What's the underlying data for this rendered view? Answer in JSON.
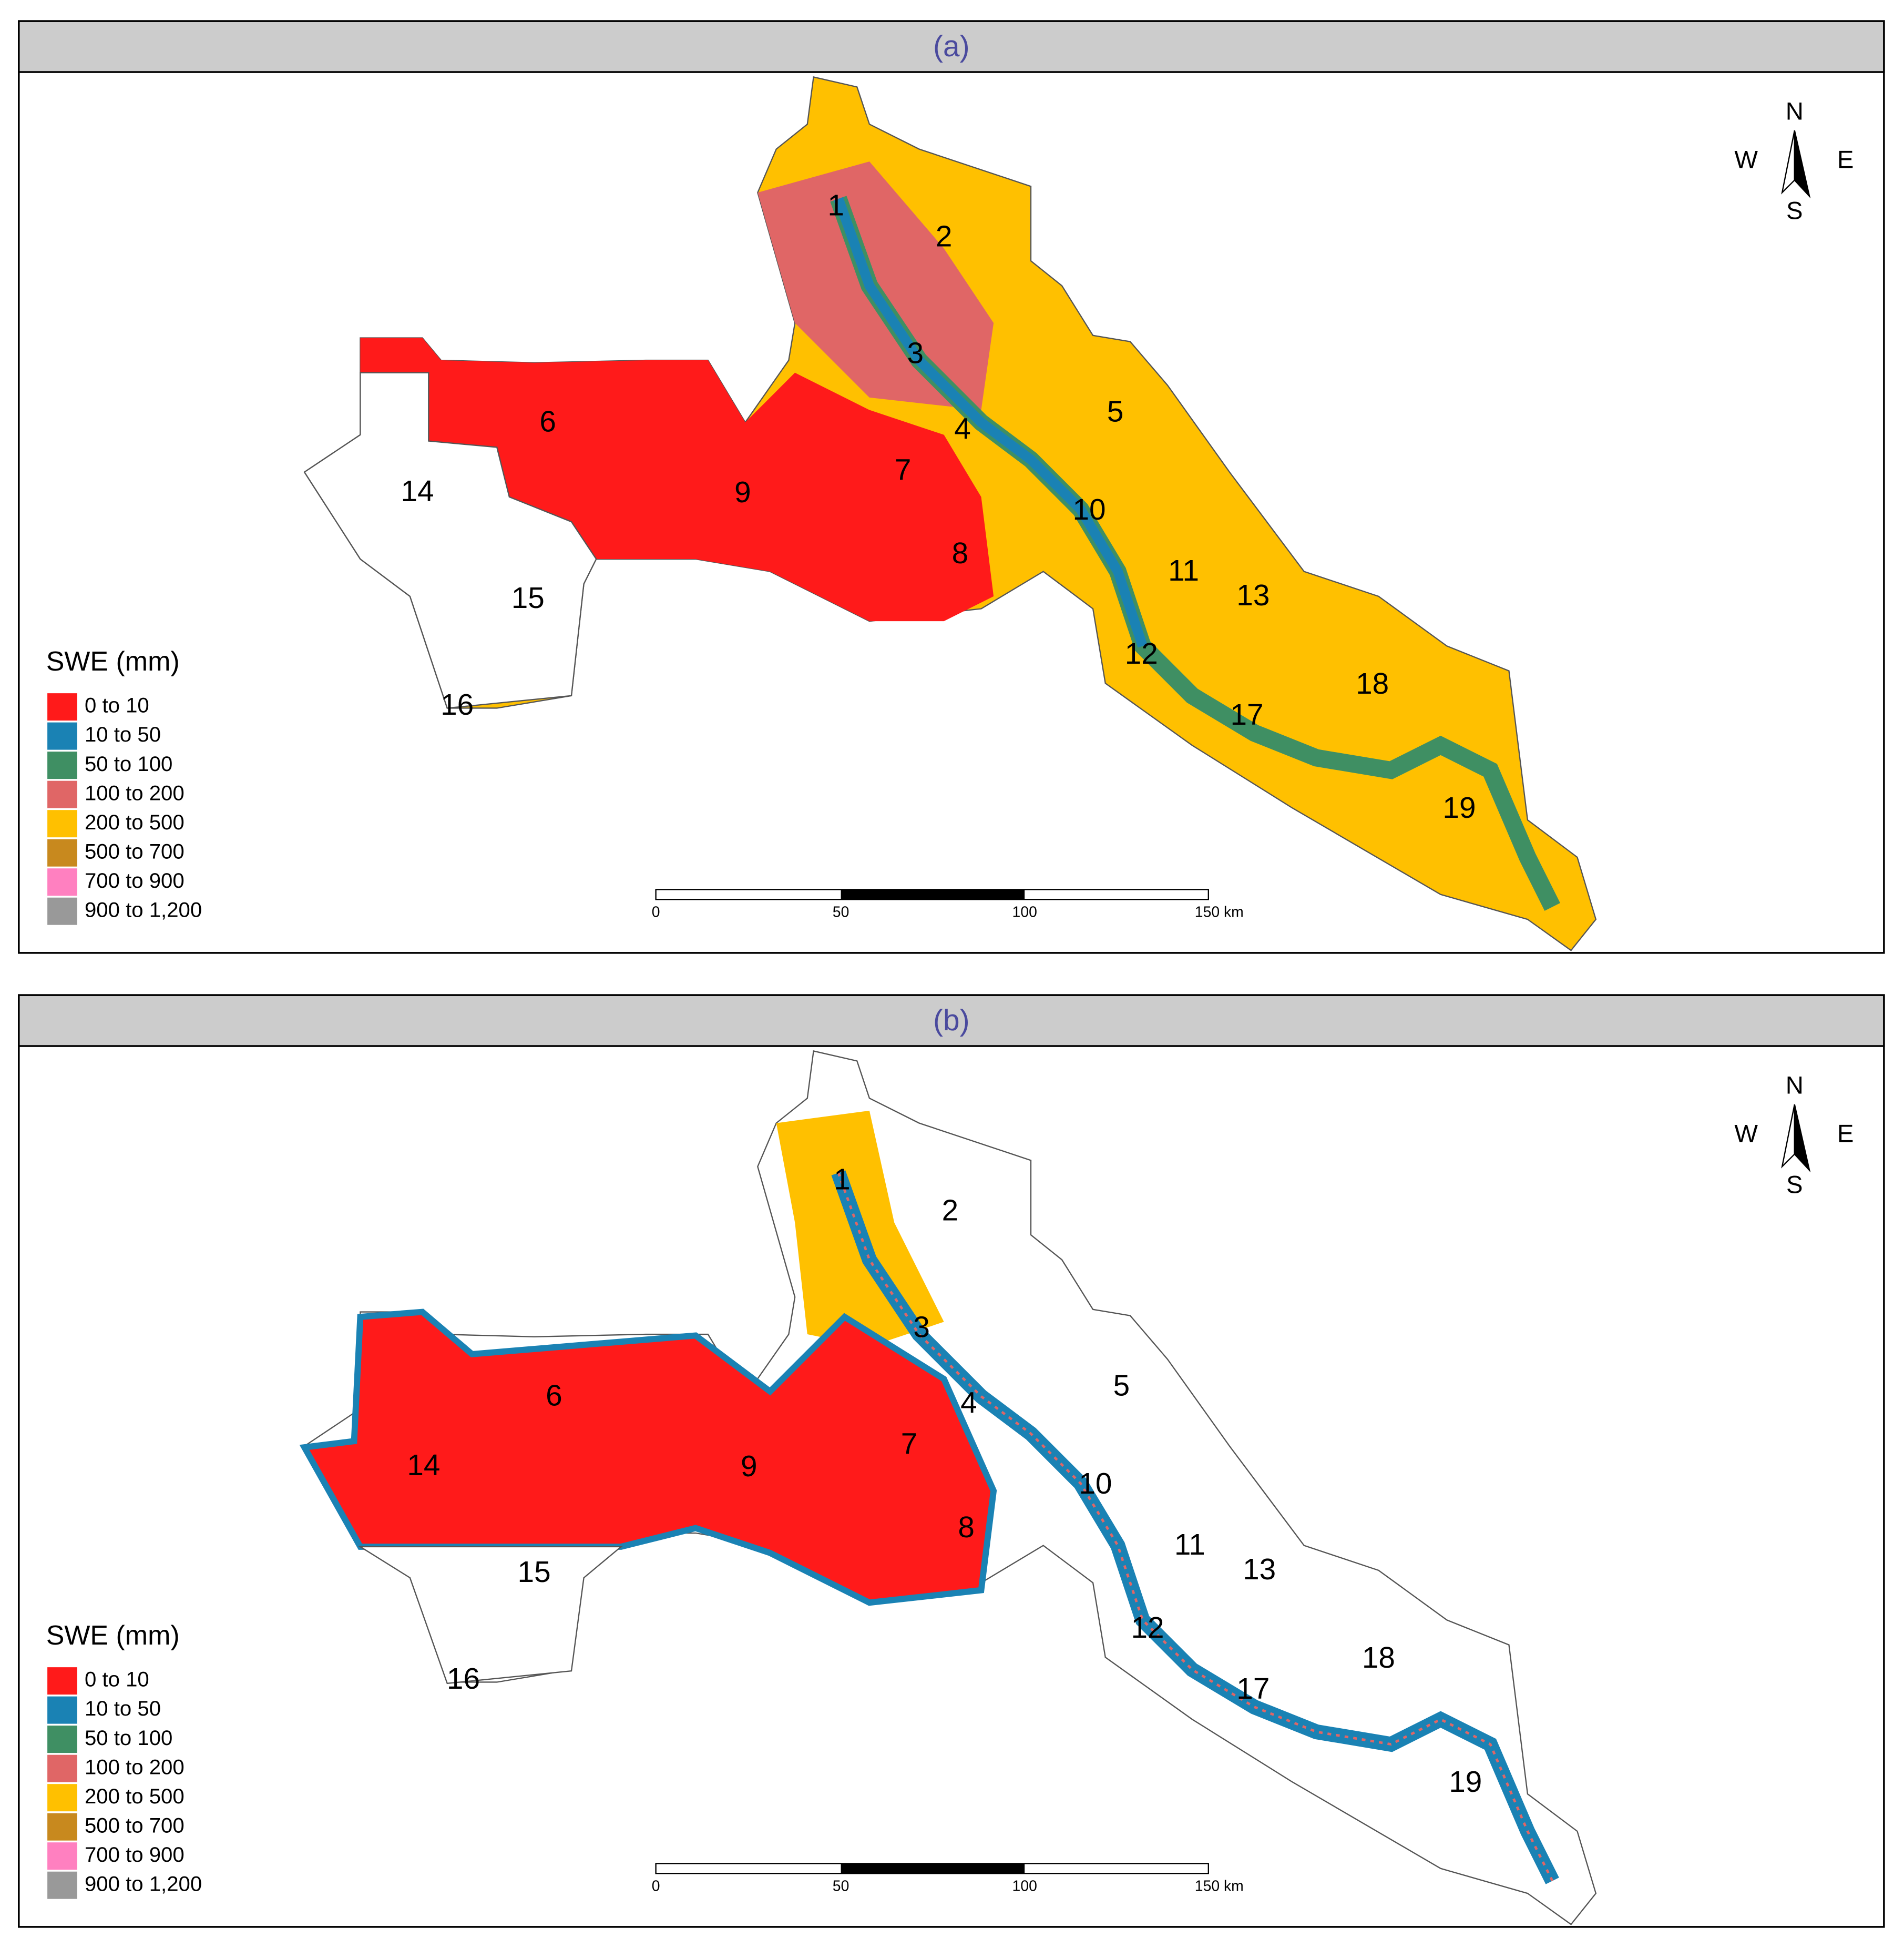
{
  "panels": [
    {
      "title": "(a)",
      "legend": {
        "title": "SWE (mm)",
        "items": [
          {
            "label": "0 to 10",
            "color": "#ff1a1a"
          },
          {
            "label": "10 to 50",
            "color": "#1a82b4"
          },
          {
            "label": "50 to 100",
            "color": "#3f8f63"
          },
          {
            "label": "100 to 200",
            "color": "#e06666"
          },
          {
            "label": "200 to 500",
            "color": "#ffc000"
          },
          {
            "label": "500 to 700",
            "color": "#c8891e"
          },
          {
            "label": "700 to 900",
            "color": "#ff80c0"
          },
          {
            "label": "900 to 1,200",
            "color": "#999999"
          }
        ]
      },
      "basins": [
        "1",
        "2",
        "3",
        "4",
        "5",
        "6",
        "7",
        "8",
        "9",
        "10",
        "11",
        "12",
        "13",
        "14",
        "15",
        "16",
        "17",
        "18",
        "19"
      ],
      "scale_bar": [
        "0",
        "50",
        "100",
        "150 km"
      ],
      "compass": {
        "north": "N",
        "west": "W",
        "east": "E",
        "south": "S"
      }
    },
    {
      "title": "(b)",
      "legend": {
        "title": "SWE (mm)",
        "items": [
          {
            "label": "0 to 10",
            "color": "#ff1a1a"
          },
          {
            "label": "10 to 50",
            "color": "#1a82b4"
          },
          {
            "label": "50 to 100",
            "color": "#3f8f63"
          },
          {
            "label": "100 to 200",
            "color": "#e06666"
          },
          {
            "label": "200 to 500",
            "color": "#ffc000"
          },
          {
            "label": "500 to 700",
            "color": "#c8891e"
          },
          {
            "label": "700 to 900",
            "color": "#ff80c0"
          },
          {
            "label": "900 to 1,200",
            "color": "#999999"
          }
        ]
      },
      "basins": [
        "1",
        "2",
        "3",
        "4",
        "5",
        "6",
        "7",
        "8",
        "9",
        "10",
        "11",
        "12",
        "13",
        "14",
        "15",
        "16",
        "17",
        "18",
        "19"
      ],
      "scale_bar": [
        "0",
        "50",
        "100",
        "150 km"
      ],
      "compass": {
        "north": "N",
        "west": "W",
        "east": "E",
        "south": "S"
      }
    }
  ]
}
